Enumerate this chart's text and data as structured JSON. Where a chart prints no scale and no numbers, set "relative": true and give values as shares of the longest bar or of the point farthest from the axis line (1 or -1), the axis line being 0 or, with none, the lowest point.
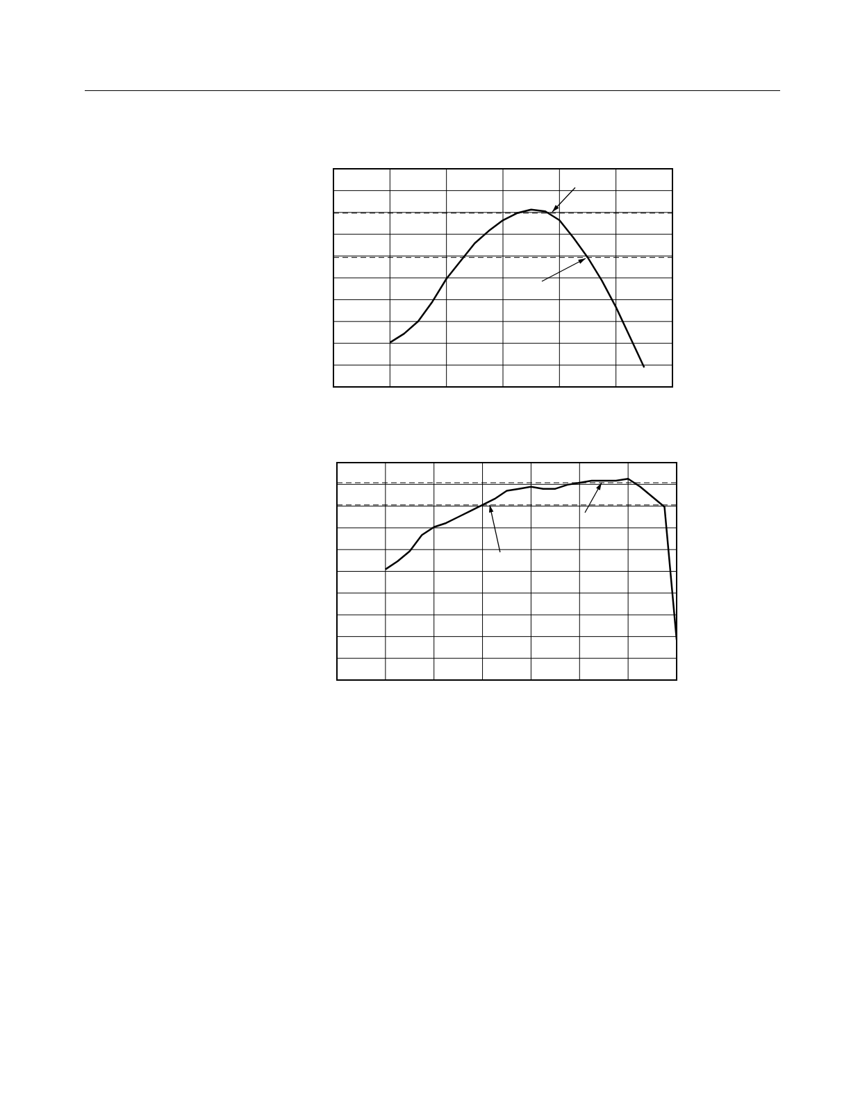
{
  "chart_data": [
    {
      "type": "line",
      "relative": true,
      "grid": true,
      "legend": false,
      "marker": "none",
      "line_style": "solid",
      "categories": [
        null,
        null,
        null,
        null,
        null,
        null,
        null,
        null,
        null,
        null,
        null,
        null,
        null,
        null,
        null,
        null,
        null,
        null,
        null,
        null,
        null,
        null,
        null,
        null,
        null
      ],
      "series": [
        {
          "color": "#000000",
          "values": [
            null,
            null,
            null,
            null,
            0.25,
            0.3,
            0.37,
            0.48,
            0.61,
            0.71,
            0.81,
            0.88,
            0.94,
            0.98,
            1.0,
            0.99,
            0.94,
            0.84,
            0.73,
            0.6,
            0.45,
            0.28,
            0.11,
            null,
            null
          ]
        }
      ],
      "ref_lines": [
        {
          "axis": "y",
          "value": 0.98,
          "line_style": "dashed"
        },
        {
          "axis": "y",
          "value": 0.73,
          "line_style": "dashed"
        }
      ]
    },
    {
      "type": "line",
      "relative": true,
      "grid": true,
      "legend": false,
      "marker": "none",
      "line_style": "solid",
      "categories": [
        null,
        null,
        null,
        null,
        null,
        null,
        null,
        null,
        null,
        null,
        null,
        null,
        null,
        null,
        null,
        null,
        null,
        null,
        null,
        null,
        null,
        null,
        null,
        null,
        null,
        null,
        null,
        null,
        null
      ],
      "series": [
        {
          "color": "#000000",
          "values": [
            null,
            null,
            null,
            null,
            0.55,
            0.59,
            0.64,
            0.72,
            0.76,
            0.78,
            0.81,
            0.84,
            0.87,
            0.9,
            0.94,
            0.95,
            0.96,
            0.95,
            0.95,
            0.97,
            0.98,
            0.99,
            0.99,
            0.99,
            1.0,
            0.96,
            0.91,
            0.86,
            0.2
          ]
        }
      ],
      "ref_lines": [
        {
          "axis": "y",
          "value": 0.98,
          "line_style": "dashed"
        },
        {
          "axis": "y",
          "value": 0.87,
          "line_style": "dashed"
        }
      ]
    }
  ]
}
